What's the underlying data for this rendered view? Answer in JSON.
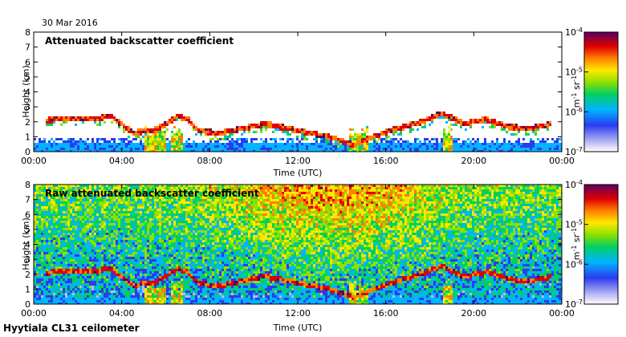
{
  "figure": {
    "date": "30 Mar 2016",
    "instrument": "Hyytiala CL31 ceilometer"
  },
  "chart_data": [
    {
      "type": "heatmap",
      "title": "Attenuated backscatter coefficient",
      "xlabel": "Time (UTC)",
      "ylabel": "Height (km)",
      "xlim": [
        0,
        24
      ],
      "ylim": [
        0,
        8
      ],
      "xticks": [
        "00:00",
        "04:00",
        "08:00",
        "12:00",
        "16:00",
        "20:00",
        "00:00"
      ],
      "yticks": [
        "0",
        "1",
        "2",
        "3",
        "4",
        "5",
        "6",
        "7",
        "8"
      ],
      "colorbar": {
        "label": "m-1 sr-1",
        "scale": "log",
        "range": [
          1e-07,
          0.0001
        ],
        "ticks": [
          "10-7",
          "10-6",
          "10-5",
          "10-4"
        ]
      },
      "cloud_layer_km": [
        [
          0.5,
          2.1
        ],
        [
          1,
          2.2
        ],
        [
          2,
          2.3
        ],
        [
          3,
          2.3
        ],
        [
          3.5,
          2.4
        ],
        [
          4.5,
          1.3
        ],
        [
          5.5,
          1.5
        ],
        [
          6,
          1.9
        ],
        [
          6.5,
          2.4
        ],
        [
          7,
          2.2
        ],
        [
          7.5,
          1.4
        ],
        [
          8.5,
          1.3
        ],
        [
          9.5,
          1.6
        ],
        [
          10.5,
          1.9
        ],
        [
          11.5,
          1.6
        ],
        [
          12.5,
          1.3
        ],
        [
          13.5,
          1.0
        ],
        [
          14.5,
          0.5
        ],
        [
          15.5,
          1.1
        ],
        [
          16.5,
          1.6
        ],
        [
          17.5,
          2.0
        ],
        [
          18.5,
          2.6
        ],
        [
          19.5,
          1.9
        ],
        [
          20.5,
          2.2
        ],
        [
          21.5,
          1.7
        ],
        [
          22.5,
          1.6
        ],
        [
          23.5,
          1.9
        ]
      ],
      "fog_periods_utc": [
        [
          5.0,
          6.0
        ],
        [
          6.2,
          6.8
        ],
        [
          14.3,
          15.2
        ],
        [
          18.5,
          19.0
        ]
      ]
    },
    {
      "type": "heatmap",
      "title": "Raw attenuated backscatter coefficient",
      "xlabel": "Time (UTC)",
      "ylabel": "Height (km)",
      "xlim": [
        0,
        24
      ],
      "ylim": [
        0,
        8
      ],
      "xticks": [
        "00:00",
        "04:00",
        "08:00",
        "12:00",
        "16:00",
        "20:00",
        "00:00"
      ],
      "yticks": [
        "0",
        "1",
        "2",
        "3",
        "4",
        "5",
        "6",
        "7",
        "8"
      ],
      "colorbar": {
        "label": "m-1 sr-1",
        "scale": "log",
        "range": [
          1e-07,
          0.0001
        ],
        "ticks": [
          "10-7",
          "10-6",
          "10-5",
          "10-4"
        ]
      },
      "noise_peak_utc": 13.5
    }
  ]
}
